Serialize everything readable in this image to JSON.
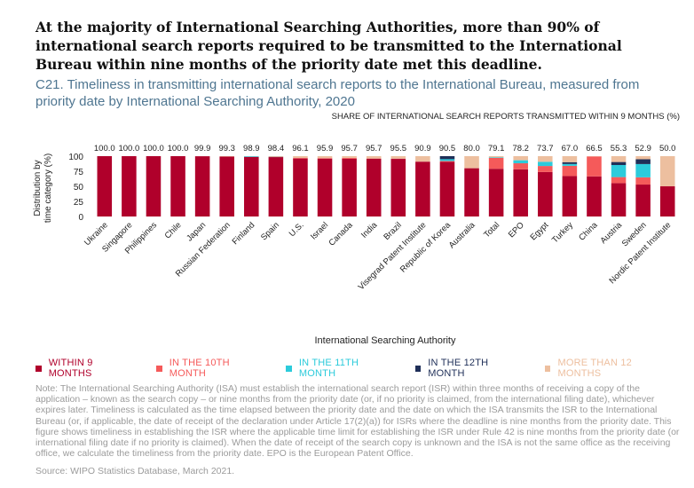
{
  "headline": "At the majority of International Searching Authorities, more than 90% of international search reports required to be transmitted to the International Bureau within nine months of the priority date met this deadline.",
  "subtitle": "C21. Timeliness in transmitting international search reports to the International Bureau, measured from priority date by International Searching Authority, 2020",
  "note": "Note: The International Searching Authority (ISA) must establish the international search report (ISR) within three months of receiving a copy of the application – known as the search copy – or nine months from the priority date (or, if no priority is claimed, from the international filing date), whichever expires later. Timeliness is calculated as the time elapsed between the priority date and the date on which the ISA transmits the ISR to the International Bureau (or, if applicable, the date of receipt of the declaration under Article 17(2)(a)) for ISRs where the deadline is nine months from the priority date. This figure shows timeliness in establishing the ISR where the applicable time limit for establishing the ISR under Rule 42 is nine months from the priority date (or international filing date if no priority is claimed). When the date of receipt of the search copy is unknown and the ISA is not the same office as the receiving office, we calculate the timeliness from the priority date. EPO is the European Patent Office.",
  "source": "Source: WIPO Statistics Database, March 2021.",
  "chart_data": {
    "type": "bar",
    "stacked": true,
    "top_label_title": "SHARE OF INTERNATIONAL SEARCH REPORTS TRANSMITTED WITHIN 9 MONTHS (%)",
    "xlabel": "International Searching Authority",
    "ylabel": "Distribution by time category (%)",
    "ylim": [
      0,
      100
    ],
    "yticks": [
      "0",
      "25",
      "50",
      "75",
      "100"
    ],
    "categories": [
      "Ukraine",
      "Singapore",
      "Philippines",
      "Chile",
      "Japan",
      "Russian Federation",
      "Finland",
      "Spain",
      "U.S.",
      "Israel",
      "Canada",
      "India",
      "Brazil",
      "Visegrad Patent Institute",
      "Republic of Korea",
      "Australia",
      "Total",
      "EPO",
      "Egypt",
      "Turkey",
      "China",
      "Austria",
      "Sweden",
      "Nordic Patent Institute"
    ],
    "top_labels": [
      "100.0",
      "100.0",
      "100.0",
      "100.0",
      "99.9",
      "99.3",
      "98.9",
      "98.4",
      "96.1",
      "95.9",
      "95.7",
      "95.7",
      "95.5",
      "90.9",
      "90.5",
      "80.0",
      "79.1",
      "78.2",
      "73.7",
      "67.0",
      "66.5",
      "55.3",
      "52.9",
      "50.0"
    ],
    "series": [
      {
        "name": "WITHIN 9 MONTHS",
        "color": "#b0002b",
        "values": [
          100.0,
          100.0,
          100.0,
          100.0,
          99.9,
          99.3,
          98.9,
          98.4,
          96.1,
          95.9,
          95.7,
          95.7,
          95.5,
          90.9,
          90.5,
          80.0,
          79.1,
          78.2,
          73.7,
          67.0,
          66.5,
          55.3,
          52.9,
          50.0
        ]
      },
      {
        "name": "IN THE 10TH MONTH",
        "color": "#f55a5a",
        "values": [
          0,
          0,
          0,
          0,
          0,
          0,
          0,
          0,
          1.0,
          1.0,
          1.5,
          0.5,
          0.5,
          0,
          1.5,
          0,
          18.0,
          10.0,
          10.0,
          17.0,
          33.0,
          10.0,
          12.0,
          0
        ]
      },
      {
        "name": "IN THE 11TH MONTH",
        "color": "#2ccbdb",
        "values": [
          0,
          0,
          0,
          0,
          0,
          0,
          1.0,
          0,
          0,
          0,
          0,
          0,
          0,
          0,
          3.0,
          0,
          1.0,
          5.0,
          7.0,
          3.0,
          0,
          20.0,
          22.0,
          0
        ]
      },
      {
        "name": "IN THE 12TH MONTH",
        "color": "#1f2f58",
        "values": [
          0,
          0,
          0,
          0,
          0,
          0,
          0,
          0.5,
          0,
          0,
          0,
          0,
          0,
          0,
          5.0,
          0,
          0,
          0,
          0,
          3.0,
          0,
          5.0,
          8.0,
          0
        ]
      },
      {
        "name": "MORE THAN 12 MONTHS",
        "color": "#edbf9f",
        "values": [
          0,
          0,
          0,
          0,
          0.1,
          0.7,
          0.1,
          1.1,
          2.9,
          3.1,
          2.8,
          3.8,
          4.0,
          9.1,
          0,
          20.0,
          1.9,
          6.8,
          9.3,
          10.0,
          0.5,
          9.7,
          5.1,
          50.0
        ]
      }
    ]
  }
}
